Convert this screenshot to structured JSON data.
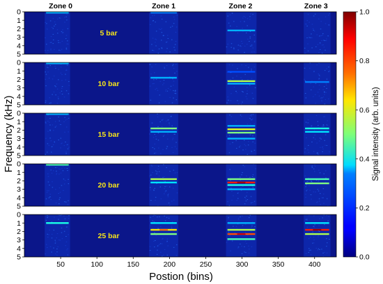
{
  "chart_data": {
    "type": "heatmap",
    "xlabel": "Postion (bins)",
    "ylabel": "Frequency (kHz)",
    "xlim": [
      0,
      430
    ],
    "x_ticks": [
      50,
      100,
      150,
      200,
      250,
      300,
      350,
      400
    ],
    "ylim": [
      0,
      5
    ],
    "y_ticks": [
      0,
      1,
      2,
      3,
      4,
      5
    ],
    "y_inverted": true,
    "zones": [
      {
        "label": "Zone 0",
        "x_center": 50,
        "x_range": [
          28,
          63
        ]
      },
      {
        "label": "Zone 1",
        "x_center": 192,
        "x_range": [
          172,
          212
        ]
      },
      {
        "label": "Zone 2",
        "x_center": 298,
        "x_range": [
          278,
          320
        ]
      },
      {
        "label": "Zone 3",
        "x_center": 402,
        "x_range": [
          385,
          422
        ]
      }
    ],
    "colorbar": {
      "label": "Signal intensity (arb. units)",
      "range": [
        0,
        1
      ],
      "ticks": [
        0.0,
        0.2,
        0.4,
        0.6,
        0.8,
        1.0
      ],
      "tick_labels": [
        "0.0",
        "0.2",
        "0.4",
        "0.6",
        "0.8",
        "1.0"
      ],
      "colormap": "jet"
    },
    "panels": [
      {
        "label": "5 bar",
        "pressure_bar": 5,
        "bands": [
          {
            "zone": 0,
            "freq": 0.1,
            "intensity": 0.3
          },
          {
            "zone": 1,
            "freq": 0.1,
            "intensity": 0.25
          },
          {
            "zone": 2,
            "freq": 2.2,
            "intensity": 0.3
          }
        ]
      },
      {
        "label": "10 bar",
        "pressure_bar": 10,
        "bands": [
          {
            "zone": 0,
            "freq": 0.1,
            "intensity": 0.3
          },
          {
            "zone": 1,
            "freq": 1.8,
            "intensity": 0.3
          },
          {
            "zone": 2,
            "freq": 1.1,
            "intensity": 0.2
          },
          {
            "zone": 2,
            "freq": 2.2,
            "intensity": 0.55
          },
          {
            "zone": 2,
            "freq": 2.5,
            "intensity": 0.3
          },
          {
            "zone": 3,
            "freq": 2.3,
            "intensity": 0.25
          }
        ]
      },
      {
        "label": "15 bar",
        "pressure_bar": 15,
        "bands": [
          {
            "zone": 0,
            "freq": 0.1,
            "intensity": 0.3
          },
          {
            "zone": 1,
            "freq": 1.8,
            "intensity": 0.5
          },
          {
            "zone": 1,
            "freq": 2.2,
            "intensity": 0.3
          },
          {
            "zone": 2,
            "freq": 1.5,
            "intensity": 0.3
          },
          {
            "zone": 2,
            "freq": 1.9,
            "intensity": 0.6
          },
          {
            "zone": 2,
            "freq": 2.3,
            "intensity": 0.5
          },
          {
            "zone": 2,
            "freq": 3.0,
            "intensity": 0.3
          },
          {
            "zone": 3,
            "freq": 1.8,
            "intensity": 0.4
          },
          {
            "zone": 3,
            "freq": 2.2,
            "intensity": 0.35
          }
        ]
      },
      {
        "label": "20 bar",
        "pressure_bar": 20,
        "bands": [
          {
            "zone": 0,
            "freq": 0.1,
            "intensity": 0.45
          },
          {
            "zone": 1,
            "freq": 1.8,
            "intensity": 0.55
          },
          {
            "zone": 1,
            "freq": 2.2,
            "intensity": 0.35
          },
          {
            "zone": 2,
            "freq": 1.8,
            "intensity": 0.5
          },
          {
            "zone": 2,
            "freq": 2.2,
            "intensity": 0.85
          },
          {
            "zone": 2,
            "freq": 2.5,
            "intensity": 0.4
          },
          {
            "zone": 2,
            "freq": 3.0,
            "intensity": 0.3
          },
          {
            "zone": 3,
            "freq": 1.8,
            "intensity": 0.45
          },
          {
            "zone": 3,
            "freq": 2.3,
            "intensity": 0.5
          }
        ]
      },
      {
        "label": "25 bar",
        "pressure_bar": 25,
        "bands": [
          {
            "zone": 0,
            "freq": 1.0,
            "intensity": 0.4
          },
          {
            "zone": 1,
            "freq": 1.0,
            "intensity": 0.35
          },
          {
            "zone": 1,
            "freq": 1.8,
            "intensity": 0.65
          },
          {
            "zone": 1,
            "freq": 2.3,
            "intensity": 0.5
          },
          {
            "zone": 2,
            "freq": 1.0,
            "intensity": 0.3
          },
          {
            "zone": 2,
            "freq": 1.8,
            "intensity": 0.55
          },
          {
            "zone": 2,
            "freq": 2.3,
            "intensity": 0.8
          },
          {
            "zone": 2,
            "freq": 2.9,
            "intensity": 0.45
          },
          {
            "zone": 3,
            "freq": 1.0,
            "intensity": 0.35
          },
          {
            "zone": 3,
            "freq": 1.8,
            "intensity": 0.85
          },
          {
            "zone": 3,
            "freq": 2.3,
            "intensity": 0.55
          }
        ]
      }
    ]
  }
}
